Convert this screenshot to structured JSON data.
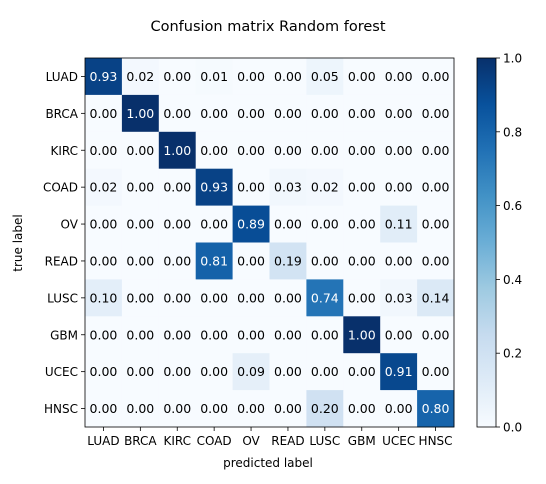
{
  "chart_data": {
    "type": "heatmap",
    "title": "Confusion matrix Random forest",
    "xlabel": "predicted label",
    "ylabel": "true label",
    "x_categories": [
      "LUAD",
      "BRCA",
      "KIRC",
      "COAD",
      "OV",
      "READ",
      "LUSC",
      "GBM",
      "UCEC",
      "HNSC"
    ],
    "y_categories": [
      "LUAD",
      "BRCA",
      "KIRC",
      "COAD",
      "OV",
      "READ",
      "LUSC",
      "GBM",
      "UCEC",
      "HNSC"
    ],
    "values": [
      [
        0.93,
        0.02,
        0.0,
        0.01,
        0.0,
        0.0,
        0.05,
        0.0,
        0.0,
        0.0
      ],
      [
        0.0,
        1.0,
        0.0,
        0.0,
        0.0,
        0.0,
        0.0,
        0.0,
        0.0,
        0.0
      ],
      [
        0.0,
        0.0,
        1.0,
        0.0,
        0.0,
        0.0,
        0.0,
        0.0,
        0.0,
        0.0
      ],
      [
        0.02,
        0.0,
        0.0,
        0.93,
        0.0,
        0.03,
        0.02,
        0.0,
        0.0,
        0.0
      ],
      [
        0.0,
        0.0,
        0.0,
        0.0,
        0.89,
        0.0,
        0.0,
        0.0,
        0.11,
        0.0
      ],
      [
        0.0,
        0.0,
        0.0,
        0.81,
        0.0,
        0.19,
        0.0,
        0.0,
        0.0,
        0.0
      ],
      [
        0.1,
        0.0,
        0.0,
        0.0,
        0.0,
        0.0,
        0.74,
        0.0,
        0.03,
        0.14
      ],
      [
        0.0,
        0.0,
        0.0,
        0.0,
        0.0,
        0.0,
        0.0,
        1.0,
        0.0,
        0.0
      ],
      [
        0.0,
        0.0,
        0.0,
        0.0,
        0.09,
        0.0,
        0.0,
        0.0,
        0.91,
        0.0
      ],
      [
        0.0,
        0.0,
        0.0,
        0.0,
        0.0,
        0.0,
        0.2,
        0.0,
        0.0,
        0.8
      ]
    ],
    "value_format": "0.00",
    "colormap": "Blues",
    "vmin": 0.0,
    "vmax": 1.0,
    "colorbar_ticks": [
      0.0,
      0.2,
      0.4,
      0.6,
      0.8,
      1.0
    ],
    "colorbar_tick_labels": [
      "0.0",
      "0.2",
      "0.4",
      "0.6",
      "0.8",
      "1.0"
    ],
    "annotation_light_color": "#ffffff",
    "annotation_dark_color": "#000000",
    "grid": false,
    "legend": "colorbar-right"
  }
}
